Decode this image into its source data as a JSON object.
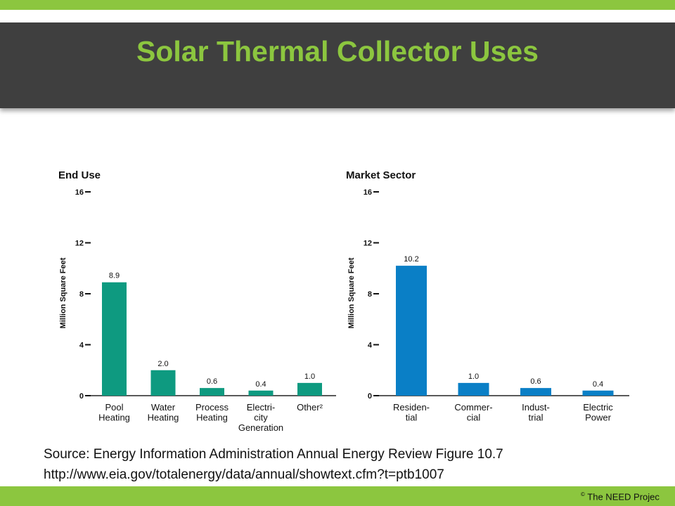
{
  "title": "Solar Thermal Collector Uses",
  "colors": {
    "accent_green": "#8cc63f",
    "title_bar": "#3f3f3f",
    "end_use_bar": "#0e9a80",
    "market_sector_bar": "#0a7fc6"
  },
  "source": {
    "line1": "Source:  Energy Information Administration Annual Energy Review Figure 10.7",
    "line2": "http://www.eia.gov/totalenergy/data/annual/showtext.cfm?t=ptb1007"
  },
  "footer": {
    "copyright_symbol": "©",
    "copyright_text": "The NEED Projec"
  },
  "chart_data": [
    {
      "type": "bar",
      "title": "End Use",
      "ylabel": "Million Square Feet",
      "ylim": [
        0,
        16
      ],
      "yticks": [
        0,
        4,
        8,
        12,
        16
      ],
      "categories": [
        [
          "Pool",
          "Heating"
        ],
        [
          "Water",
          "Heating"
        ],
        [
          "Process",
          "Heating"
        ],
        [
          "Electri-",
          "city",
          "Generation"
        ],
        [
          "Other²"
        ]
      ],
      "values": [
        8.9,
        2.0,
        0.6,
        0.4,
        1.0
      ],
      "value_labels": [
        "8.9",
        "2.0",
        "0.6",
        "0.4",
        "1.0"
      ],
      "color": "#0e9a80"
    },
    {
      "type": "bar",
      "title": "Market Sector",
      "ylabel": "Million Square Feet",
      "ylim": [
        0,
        16
      ],
      "yticks": [
        0,
        4,
        8,
        12,
        16
      ],
      "categories": [
        [
          "Residen-",
          "tial"
        ],
        [
          "Commer-",
          "cial"
        ],
        [
          "Indust-",
          "trial"
        ],
        [
          "Electric",
          "Power"
        ]
      ],
      "values": [
        10.2,
        1.0,
        0.6,
        0.4
      ],
      "value_labels": [
        "10.2",
        "1.0",
        "0.6",
        "0.4"
      ],
      "color": "#0a7fc6"
    }
  ]
}
